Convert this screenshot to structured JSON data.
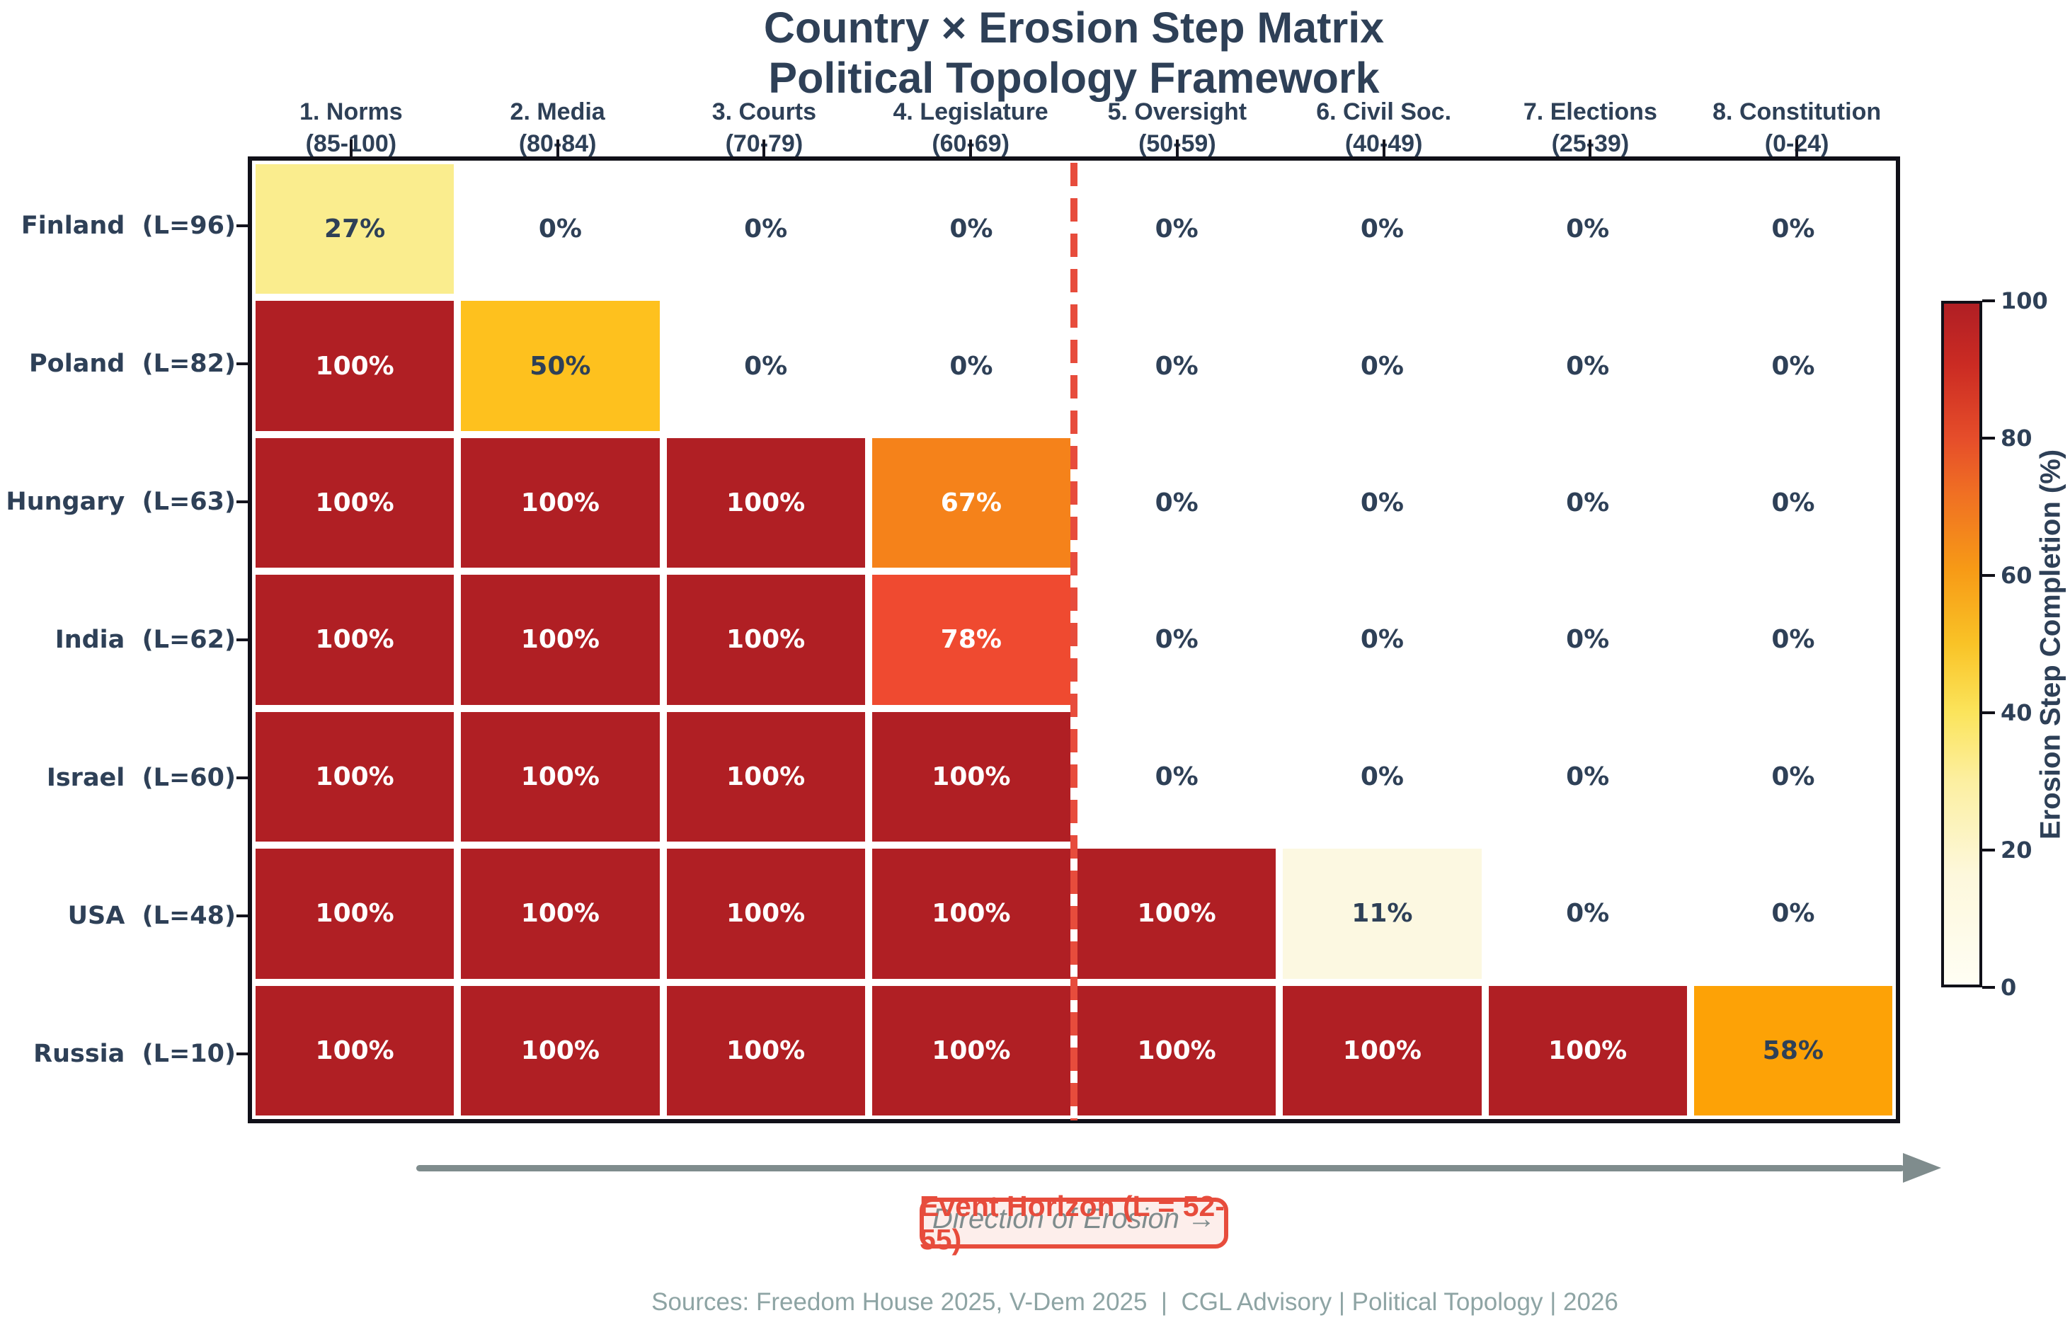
{
  "title": {
    "line1": "Country × Erosion Step Matrix",
    "line2": "Political Topology Framework"
  },
  "annotations": {
    "direction": "Direction of Erosion →",
    "event_horizon": "Event Horizon (L = 52-55)"
  },
  "footer": "Sources: Freedom House 2025, V-Dem 2025  |  CGL Advisory | Political Topology | 2026",
  "colors": {
    "ink": "#2e4057",
    "grid_border": "#101018",
    "accent_red": "#e74c3c",
    "arrow_gray": "#7f8c8d",
    "footer_gray": "#8ea4a4",
    "event_horizon_fill": "#fdede9"
  },
  "chart_data": {
    "type": "heatmap",
    "title": "Country × Erosion Step Matrix",
    "subtitle": "Political Topology Framework",
    "x_categories": [
      {
        "label": "1. Norms",
        "range": "(85-100)"
      },
      {
        "label": "2. Media",
        "range": "(80-84)"
      },
      {
        "label": "3. Courts",
        "range": "(70-79)"
      },
      {
        "label": "4. Legislature",
        "range": "(60-69)"
      },
      {
        "label": "5. Oversight",
        "range": "(50-59)"
      },
      {
        "label": "6. Civil Soc.",
        "range": "(40-49)"
      },
      {
        "label": "7. Elections",
        "range": "(25-39)"
      },
      {
        "label": "8. Constitution",
        "range": "(0-24)"
      }
    ],
    "y_categories": [
      "Finland  (L=96)",
      "Poland  (L=82)",
      "Hungary  (L=63)",
      "India  (L=62)",
      "Israel  (L=60)",
      "USA  (L=48)",
      "Russia  (L=10)"
    ],
    "values": [
      [
        27,
        0,
        0,
        0,
        0,
        0,
        0,
        0
      ],
      [
        100,
        50,
        0,
        0,
        0,
        0,
        0,
        0
      ],
      [
        100,
        100,
        100,
        67,
        0,
        0,
        0,
        0
      ],
      [
        100,
        100,
        100,
        78,
        0,
        0,
        0,
        0
      ],
      [
        100,
        100,
        100,
        100,
        0,
        0,
        0,
        0
      ],
      [
        100,
        100,
        100,
        100,
        100,
        11,
        0,
        0
      ],
      [
        100,
        100,
        100,
        100,
        100,
        100,
        100,
        58
      ]
    ],
    "value_suffix": "%",
    "cell_styles": {
      "0": {
        "bg": "#ffffff",
        "fg": "#2e4057"
      },
      "11": {
        "bg": "#fcf8e1",
        "fg": "#2e4057"
      },
      "27": {
        "bg": "#faed8e",
        "fg": "#2e4057"
      },
      "50": {
        "bg": "#fec11e",
        "fg": "#2e4057"
      },
      "58": {
        "bg": "#fda206",
        "fg": "#2e4057"
      },
      "67": {
        "bg": "#f5821a",
        "fg": "#ffffff"
      },
      "78": {
        "bg": "#ef4a30",
        "fg": "#ffffff"
      },
      "100": {
        "bg": "#b01f24",
        "fg": "#ffffff"
      }
    },
    "colorbar": {
      "label": "Erosion Step Completion (%)",
      "ticks": [
        "100",
        "80",
        "60",
        "40",
        "20",
        "0"
      ],
      "min": 0,
      "max": 100
    },
    "event_horizon_after_column": 4,
    "grid": "off",
    "legend_position": "right"
  }
}
